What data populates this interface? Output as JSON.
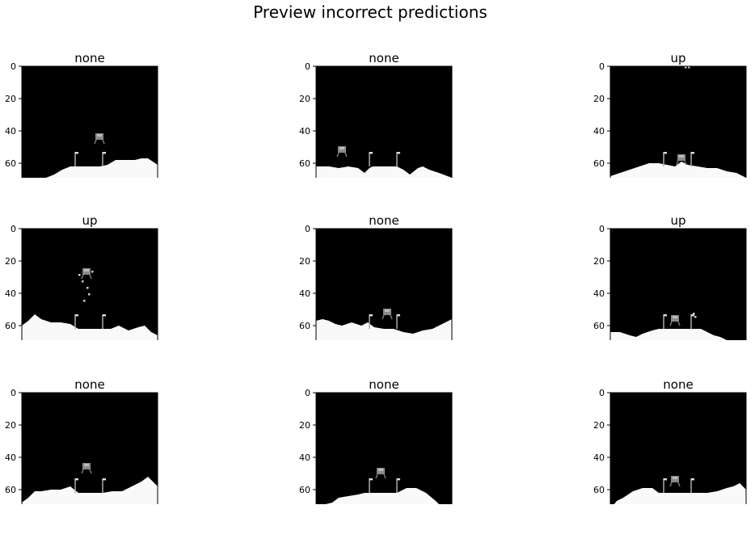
{
  "chart_data": {
    "type": "image-grid",
    "title": "Preview incorrect predictions",
    "colormap": "gray",
    "xlim": [
      0,
      84
    ],
    "ylim": [
      84,
      0
    ],
    "xticks": [
      0,
      20,
      40,
      60,
      80
    ],
    "yticks": [
      0,
      20,
      40,
      60,
      80
    ],
    "panels": [
      {
        "title": "none",
        "terrain": [
          [
            0,
            73
          ],
          [
            5,
            73
          ],
          [
            10,
            71
          ],
          [
            15,
            69
          ],
          [
            20,
            67
          ],
          [
            25,
            64
          ],
          [
            30,
            62
          ],
          [
            35,
            62
          ],
          [
            42,
            62
          ],
          [
            48,
            62
          ],
          [
            53,
            61
          ],
          [
            58,
            58
          ],
          [
            65,
            58
          ],
          [
            70,
            58
          ],
          [
            74,
            57
          ],
          [
            78,
            57
          ],
          [
            84,
            61
          ]
        ],
        "lander": {
          "x": 48,
          "y": 44
        },
        "flags": [
          33,
          50
        ],
        "sky_noise": []
      },
      {
        "title": "none",
        "terrain": [
          [
            0,
            62
          ],
          [
            8,
            62
          ],
          [
            14,
            63
          ],
          [
            20,
            62
          ],
          [
            26,
            63
          ],
          [
            30,
            66
          ],
          [
            33,
            63
          ],
          [
            35,
            62
          ],
          [
            42,
            62
          ],
          [
            50,
            62
          ],
          [
            54,
            64
          ],
          [
            58,
            67
          ],
          [
            63,
            63
          ],
          [
            66,
            62
          ],
          [
            70,
            64
          ],
          [
            76,
            66
          ],
          [
            84,
            69
          ]
        ],
        "lander": {
          "x": 16,
          "y": 52
        },
        "flags": [
          33,
          50
        ],
        "sky_noise": []
      },
      {
        "title": "up",
        "terrain": [
          [
            0,
            68
          ],
          [
            6,
            66
          ],
          [
            12,
            64
          ],
          [
            18,
            62
          ],
          [
            24,
            60
          ],
          [
            30,
            60
          ],
          [
            35,
            61
          ],
          [
            40,
            62
          ],
          [
            44,
            59
          ],
          [
            48,
            61
          ],
          [
            54,
            62
          ],
          [
            60,
            63
          ],
          [
            66,
            63
          ],
          [
            72,
            65
          ],
          [
            78,
            66
          ],
          [
            84,
            69
          ]
        ],
        "lander": {
          "x": 44,
          "y": 57
        },
        "flags": [
          33,
          50
        ],
        "sky_noise": [
          [
            46,
            0
          ],
          [
            48,
            0
          ],
          [
            2,
            76
          ],
          [
            6,
            76
          ],
          [
            12,
            74
          ],
          [
            18,
            72
          ]
        ]
      },
      {
        "title": "up",
        "terrain": [
          [
            0,
            60
          ],
          [
            4,
            57
          ],
          [
            8,
            53
          ],
          [
            12,
            56
          ],
          [
            18,
            58
          ],
          [
            24,
            58
          ],
          [
            30,
            59
          ],
          [
            35,
            62
          ],
          [
            42,
            62
          ],
          [
            50,
            62
          ],
          [
            55,
            62
          ],
          [
            60,
            60
          ],
          [
            66,
            63
          ],
          [
            72,
            61
          ],
          [
            76,
            60
          ],
          [
            80,
            64
          ],
          [
            84,
            66
          ]
        ],
        "lander": {
          "x": 40,
          "y": 27
        },
        "flags": [
          33,
          50
        ],
        "sky_noise": [
          [
            35,
            28
          ],
          [
            37,
            32
          ],
          [
            40,
            36
          ],
          [
            43,
            26
          ],
          [
            41,
            40
          ],
          [
            38,
            44
          ]
        ]
      },
      {
        "title": "none",
        "terrain": [
          [
            0,
            57
          ],
          [
            4,
            56
          ],
          [
            8,
            57
          ],
          [
            12,
            59
          ],
          [
            16,
            60
          ],
          [
            22,
            58
          ],
          [
            28,
            60
          ],
          [
            32,
            58
          ],
          [
            36,
            61
          ],
          [
            42,
            62
          ],
          [
            48,
            62
          ],
          [
            54,
            64
          ],
          [
            60,
            65
          ],
          [
            66,
            63
          ],
          [
            72,
            62
          ],
          [
            78,
            59
          ],
          [
            84,
            56
          ]
        ],
        "lander": {
          "x": 44,
          "y": 52
        },
        "flags": [
          33,
          50
        ],
        "sky_noise": []
      },
      {
        "title": "up",
        "terrain": [
          [
            0,
            64
          ],
          [
            6,
            64
          ],
          [
            12,
            66
          ],
          [
            16,
            67
          ],
          [
            20,
            65
          ],
          [
            26,
            63
          ],
          [
            30,
            62
          ],
          [
            35,
            62
          ],
          [
            42,
            62
          ],
          [
            50,
            62
          ],
          [
            56,
            62
          ],
          [
            60,
            64
          ],
          [
            64,
            66
          ],
          [
            68,
            67
          ],
          [
            72,
            69
          ],
          [
            78,
            72
          ],
          [
            84,
            72
          ]
        ],
        "lander": {
          "x": 40,
          "y": 56
        },
        "flags": [
          33,
          50
        ],
        "sky_noise": [
          [
            51,
            52
          ],
          [
            52,
            54
          ]
        ]
      },
      {
        "title": "none",
        "terrain": [
          [
            0,
            68
          ],
          [
            4,
            65
          ],
          [
            8,
            61
          ],
          [
            12,
            61
          ],
          [
            18,
            60
          ],
          [
            24,
            60
          ],
          [
            30,
            58
          ],
          [
            35,
            62
          ],
          [
            42,
            62
          ],
          [
            50,
            62
          ],
          [
            56,
            61
          ],
          [
            62,
            61
          ],
          [
            66,
            59
          ],
          [
            70,
            57
          ],
          [
            74,
            55
          ],
          [
            78,
            52
          ],
          [
            84,
            58
          ]
        ],
        "lander": {
          "x": 40,
          "y": 46
        },
        "flags": [
          33,
          50
        ],
        "sky_noise": []
      },
      {
        "title": "none",
        "terrain": [
          [
            0,
            69
          ],
          [
            6,
            69
          ],
          [
            10,
            68
          ],
          [
            14,
            65
          ],
          [
            20,
            64
          ],
          [
            26,
            63
          ],
          [
            30,
            62
          ],
          [
            35,
            62
          ],
          [
            42,
            62
          ],
          [
            50,
            62
          ],
          [
            56,
            59
          ],
          [
            62,
            59
          ],
          [
            68,
            62
          ],
          [
            74,
            67
          ],
          [
            78,
            71
          ],
          [
            84,
            75
          ]
        ],
        "lander": {
          "x": 40,
          "y": 49
        },
        "flags": [
          33,
          50
        ],
        "sky_noise": []
      },
      {
        "title": "none",
        "terrain": [
          [
            0,
            72
          ],
          [
            4,
            67
          ],
          [
            8,
            65
          ],
          [
            14,
            61
          ],
          [
            20,
            59
          ],
          [
            26,
            59
          ],
          [
            30,
            62
          ],
          [
            35,
            62
          ],
          [
            42,
            62
          ],
          [
            50,
            62
          ],
          [
            56,
            62
          ],
          [
            60,
            62
          ],
          [
            66,
            61
          ],
          [
            72,
            59
          ],
          [
            76,
            58
          ],
          [
            80,
            56
          ],
          [
            84,
            60
          ]
        ],
        "lander": {
          "x": 40,
          "y": 54
        },
        "flags": [
          33,
          50
        ],
        "sky_noise": []
      }
    ]
  }
}
